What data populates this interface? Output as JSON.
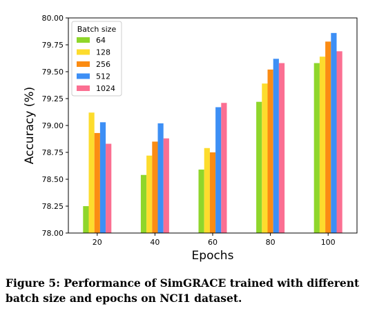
{
  "chart_data": {
    "type": "bar",
    "categories": [
      "20",
      "40",
      "60",
      "80",
      "100"
    ],
    "series": [
      {
        "name": "64",
        "color": "#8fd62b",
        "values": [
          78.25,
          78.54,
          78.59,
          79.22,
          79.58
        ]
      },
      {
        "name": "128",
        "color": "#fddc2d",
        "values": [
          79.12,
          78.72,
          78.79,
          79.39,
          79.64
        ]
      },
      {
        "name": "256",
        "color": "#fb8c13",
        "values": [
          78.93,
          78.85,
          78.75,
          79.52,
          79.78
        ]
      },
      {
        "name": "512",
        "color": "#3d8ff5",
        "values": [
          79.03,
          79.02,
          79.17,
          79.62,
          79.86
        ]
      },
      {
        "name": "1024",
        "color": "#fb6f92",
        "values": [
          78.83,
          78.88,
          79.21,
          79.58,
          79.69
        ]
      }
    ],
    "xlabel": "Epochs",
    "ylabel": "Accuracy (%)",
    "ylim": [
      78.0,
      80.0
    ],
    "yticks": [
      "78.00",
      "78.25",
      "78.50",
      "78.75",
      "79.00",
      "79.25",
      "79.50",
      "79.75",
      "80.00"
    ],
    "legend_title": "Batch size",
    "legend_position": "top-left",
    "grid": false
  },
  "caption": "Figure 5: Performance of SimGRACE trained with different batch size and epochs on NCI1 dataset."
}
